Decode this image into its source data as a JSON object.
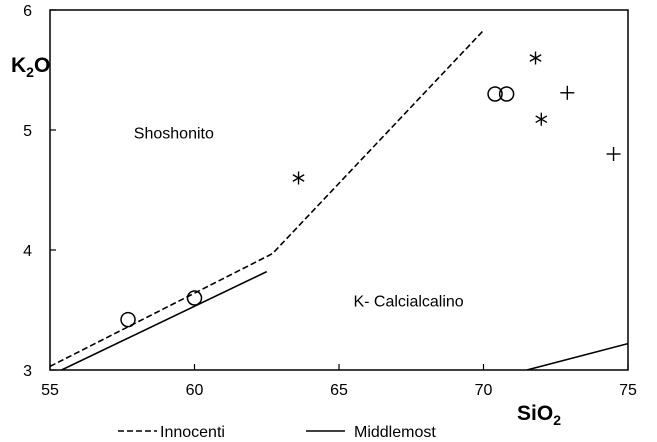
{
  "chart_data": {
    "type": "scatter",
    "xlabel": {
      "main": "SiO",
      "sub": "2"
    },
    "ylabel": {
      "main": "K",
      "sub": "2",
      "rest": "O"
    },
    "xlim": [
      55,
      75
    ],
    "ylim": [
      3,
      6
    ],
    "xticks": [
      "55",
      "60",
      "65",
      "70",
      "75"
    ],
    "yticks": [
      "3",
      "4",
      "5",
      "6"
    ],
    "grid": false,
    "regions": [
      {
        "label": "Shoshonito",
        "x": 57.9,
        "y": 4.93
      },
      {
        "label": "K- Calcialcalino",
        "x": 65.5,
        "y": 3.53
      }
    ],
    "boundaries": [
      {
        "name": "Innocenti",
        "style": "dashed",
        "segments": [
          [
            [
              55.0,
              3.03
            ],
            [
              62.7,
              3.97
            ],
            [
              70.0,
              5.83
            ]
          ]
        ]
      },
      {
        "name": "Middlemost",
        "style": "solid",
        "segments": [
          [
            [
              55.4,
              3.0
            ],
            [
              62.5,
              3.82
            ]
          ],
          [
            [
              71.5,
              3.0
            ],
            [
              75.0,
              3.22
            ]
          ]
        ]
      }
    ],
    "series": [
      {
        "marker": "circle",
        "points": [
          [
            57.7,
            3.42
          ],
          [
            60.0,
            3.6
          ],
          [
            70.4,
            5.3
          ],
          [
            70.8,
            5.3
          ]
        ]
      },
      {
        "marker": "asterisk",
        "points": [
          [
            63.6,
            4.6
          ],
          [
            71.8,
            5.6
          ],
          [
            72.0,
            5.09
          ]
        ]
      },
      {
        "marker": "plus",
        "points": [
          [
            72.9,
            5.31
          ],
          [
            74.5,
            4.8
          ]
        ]
      }
    ],
    "legend": {
      "placement": "bottom",
      "entries": [
        {
          "label": "Innocenti",
          "style": "dashed"
        },
        {
          "label": "Middlemost",
          "style": "solid"
        }
      ]
    }
  }
}
